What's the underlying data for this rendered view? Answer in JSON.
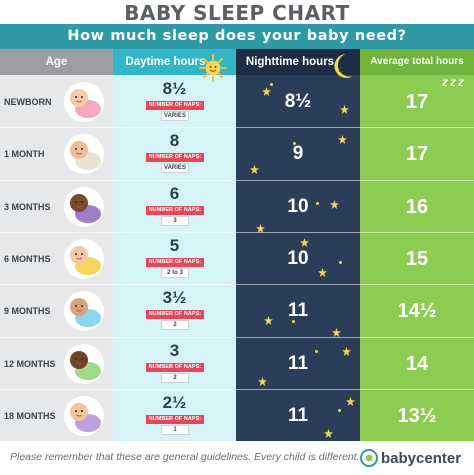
{
  "title": "BABY SLEEP CHART",
  "subtitle": "How much sleep does your baby need?",
  "headers": {
    "age": "Age",
    "daytime": "Daytime hours",
    "nighttime": "Nighttime hours",
    "total": "Average total hours"
  },
  "zzz": "Z Z Z",
  "nap_label": "NUMBER OF NAPS:",
  "rows": [
    {
      "age": "NEWBORN",
      "daytime": "8½",
      "naps": "VARIES",
      "nighttime": "8½",
      "total": "17"
    },
    {
      "age": "1 MONTH",
      "daytime": "8",
      "naps": "VARIES",
      "nighttime": "9",
      "total": "17"
    },
    {
      "age": "3 MONTHS",
      "daytime": "6",
      "naps": "3",
      "nighttime": "10",
      "total": "16"
    },
    {
      "age": "6 MONTHS",
      "daytime": "5",
      "naps": "2 to 3",
      "nighttime": "10",
      "total": "15"
    },
    {
      "age": "9 MONTHS",
      "daytime": "3½",
      "naps": "2",
      "nighttime": "11",
      "total": "14½"
    },
    {
      "age": "12 MONTHS",
      "daytime": "3",
      "naps": "2",
      "nighttime": "11",
      "total": "14"
    },
    {
      "age": "18 MONTHS",
      "daytime": "2½",
      "naps": "1",
      "nighttime": "11",
      "total": "13½"
    }
  ],
  "footer": {
    "note": "Please remember that these are general guidelines. Every child is different.",
    "brand": "babycenter"
  },
  "colors": {
    "subtitle_bar": "#2f9aa6",
    "daytime": "#d6f3f8",
    "nighttime": "#2a3e57",
    "total": "#8ccc52",
    "nap_badge": "#e1485a",
    "star": "#f3d35a"
  },
  "icons": [
    "sun-icon",
    "moon-icon",
    "star-icon",
    "baby-illustration",
    "babycenter-logo-icon"
  ]
}
